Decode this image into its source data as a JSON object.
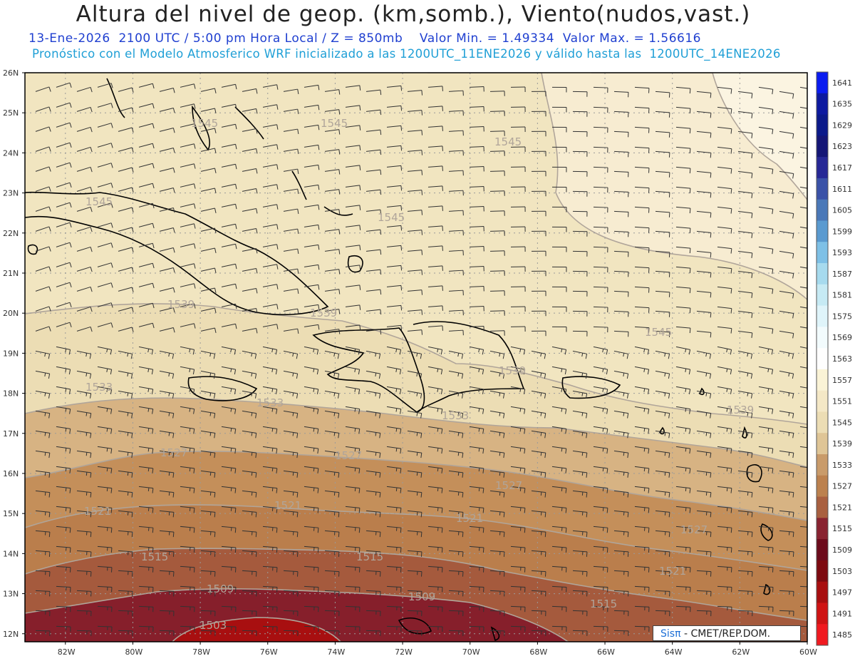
{
  "header": {
    "title": "Altura del nivel de geop. (km,somb.), Viento(nudos,vast.)",
    "info_line": "13-Ene-2026  2100 UTC / 5:00 pm Hora Local / Z = 850mb    Valor Min. = 1.49334  Valor Max. = 1.56616",
    "forecast_line": "Pronóstico con el Modelo Atmosferico WRF inicializado a las 1200UTC_11ENE2026 y válido hasta las  1200UTC_14ENE2026"
  },
  "map": {
    "lat_labels": [
      "26N",
      "25N",
      "24N",
      "23N",
      "22N",
      "21N",
      "20N",
      "19N",
      "18N",
      "17N",
      "16N",
      "15N",
      "14N",
      "13N",
      "12N"
    ],
    "lon_labels": [
      "82W",
      "80W",
      "78W",
      "76W",
      "74W",
      "72W",
      "70W",
      "68W",
      "66W",
      "64W",
      "62W",
      "60W"
    ],
    "contour_labels": [
      "1545",
      "1545",
      "1545",
      "1545",
      "1545",
      "1545",
      "1539",
      "1539",
      "1539",
      "1539",
      "1533",
      "1533",
      "1533",
      "1527",
      "1527",
      "1527",
      "1527",
      "1521",
      "1521",
      "1521",
      "1521",
      "1515",
      "1515",
      "1515",
      "1509",
      "1509",
      "1503"
    ],
    "colors": {
      "shade_1545_1551": "#f1e5c0",
      "shade_1551_1557": "#f7ecd1",
      "shade_1557_1563": "#fbf4e1",
      "shade_1539_1545": "#ecddb4",
      "shade_1533_1539": "#d7b383",
      "shade_1527_1533": "#c48f5a",
      "shade_1521_1527": "#ba7e4c",
      "shade_1515_1521": "#a55a3d",
      "shade_1509_1515": "#861f2b",
      "shade_1503_1509": "#6c0b1c",
      "shade_1497_1503": "#a80f10",
      "coastline": "#000000",
      "contour_line": "#b0a59a",
      "grid": "#9a9a9a"
    }
  },
  "colorbar": {
    "labels": [
      "1641",
      "1635",
      "1629",
      "1623",
      "1617",
      "1611",
      "1605",
      "1599",
      "1593",
      "1587",
      "1581",
      "1575",
      "1569",
      "1563",
      "1557",
      "1551",
      "1545",
      "1539",
      "1533",
      "1527",
      "1521",
      "1515",
      "1509",
      "1503",
      "1497",
      "1491",
      "1485"
    ],
    "colors": [
      "#0a1cf0",
      "#0d1aa0",
      "#0b1a8a",
      "#141676",
      "#262896",
      "#3a52a8",
      "#4a78b8",
      "#5a9ad0",
      "#7ec0e6",
      "#a6daee",
      "#c6eaf4",
      "#dff4fa",
      "#f2fbfd",
      "#fefefe",
      "#faf3d6",
      "#f4e8c6",
      "#ecddb4",
      "#dfc596",
      "#c99b6a",
      "#bc814e",
      "#a96040",
      "#892331",
      "#6c0b1c",
      "#7d0a10",
      "#a80f10",
      "#cf1414",
      "#f01a20"
    ]
  },
  "credit": {
    "brand": "Sisπ",
    "rest": "- CMET/REP.DOM."
  }
}
